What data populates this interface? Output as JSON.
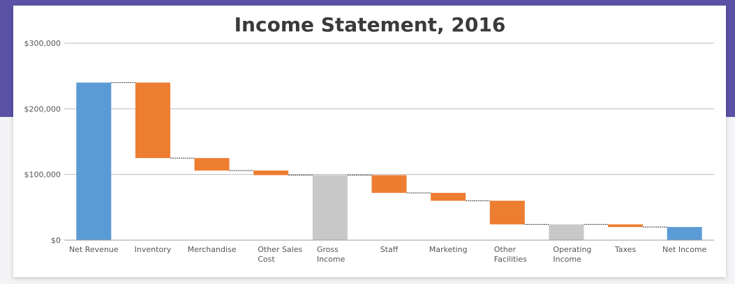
{
  "chart_data": {
    "type": "bar",
    "subtype": "waterfall",
    "title": "Income Statement, 2016",
    "xlabel": "",
    "ylabel": "",
    "ylim": [
      0,
      300000
    ],
    "y_ticks": [
      {
        "value": 0,
        "label": "$0"
      },
      {
        "value": 100000,
        "label": "$100,000"
      },
      {
        "value": 200000,
        "label": "$200,000"
      },
      {
        "value": 300000,
        "label": "$300,000"
      }
    ],
    "grid": true,
    "legend": "none",
    "colors": {
      "total": "#5b9bd5",
      "decrease": "#ed7d31",
      "subtotal": "#c8c8c8"
    },
    "categories": [
      [
        "Net Revenue"
      ],
      [
        "Inventory"
      ],
      [
        "Merchandise"
      ],
      [
        "Other Sales",
        "Cost"
      ],
      [
        "Gross",
        "Income"
      ],
      [
        "Staff"
      ],
      [
        "Marketing"
      ],
      [
        "Other",
        "Facilities"
      ],
      [
        "Operating",
        "Income"
      ],
      [
        "Taxes"
      ],
      [
        "Net Income"
      ]
    ],
    "bars": [
      {
        "kind": "total",
        "start": 0,
        "end": 240000
      },
      {
        "kind": "decrease",
        "start": 240000,
        "end": 125000
      },
      {
        "kind": "decrease",
        "start": 125000,
        "end": 106000
      },
      {
        "kind": "decrease",
        "start": 106000,
        "end": 99000
      },
      {
        "kind": "subtotal",
        "start": 0,
        "end": 99000
      },
      {
        "kind": "decrease",
        "start": 99000,
        "end": 72000
      },
      {
        "kind": "decrease",
        "start": 72000,
        "end": 60000
      },
      {
        "kind": "decrease",
        "start": 60000,
        "end": 24000
      },
      {
        "kind": "subtotal",
        "start": 0,
        "end": 24000
      },
      {
        "kind": "decrease",
        "start": 24000,
        "end": 20000
      },
      {
        "kind": "total",
        "start": 0,
        "end": 20000
      }
    ]
  }
}
